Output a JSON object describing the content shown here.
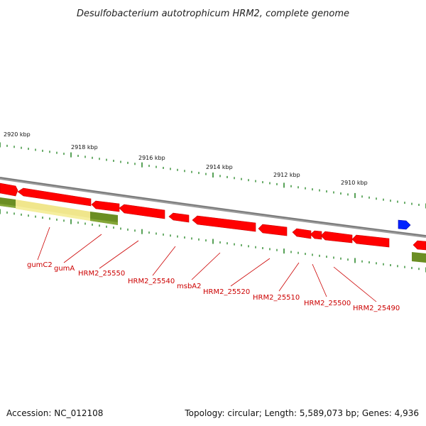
{
  "title": "Desulfobacterium autotrophicum HRM2, complete genome",
  "footer": {
    "accession": "Accession: NC_012108",
    "summary": "Topology: circular; Length: 5,589,073 bp; Genes: 4,936"
  },
  "colors": {
    "backbone": "#8a8a8a",
    "gene_cds": "#ff0000",
    "gene_cds_shadow": "#d70000",
    "gene_selected": "#f0e68c",
    "rna_feature": "#6b8e23",
    "blue_feature": "#0000ff",
    "tick": "#2e8b2e",
    "label": "#cc0000"
  },
  "scale": {
    "labels": [
      "2920 kbp",
      "2918 kbp",
      "2916 kbp",
      "2914 kbp",
      "2912 kbp",
      "2910 kbp"
    ]
  },
  "genes": [
    {
      "name": "gumC2",
      "label": "gumC2"
    },
    {
      "name": "gumA",
      "label": "gumA"
    },
    {
      "name": "HRM2_25550",
      "label": "HRM2_25550"
    },
    {
      "name": "HRM2_25540",
      "label": "HRM2_25540"
    },
    {
      "name": "msbA2",
      "label": "msbA2"
    },
    {
      "name": "HRM2_25520",
      "label": "HRM2_25520"
    },
    {
      "name": "HRM2_25510",
      "label": "HRM2_25510"
    },
    {
      "name": "HRM2_25500",
      "label": "HRM2_25500"
    },
    {
      "name": "HRM2_25490",
      "label": "HRM2_25490"
    }
  ]
}
